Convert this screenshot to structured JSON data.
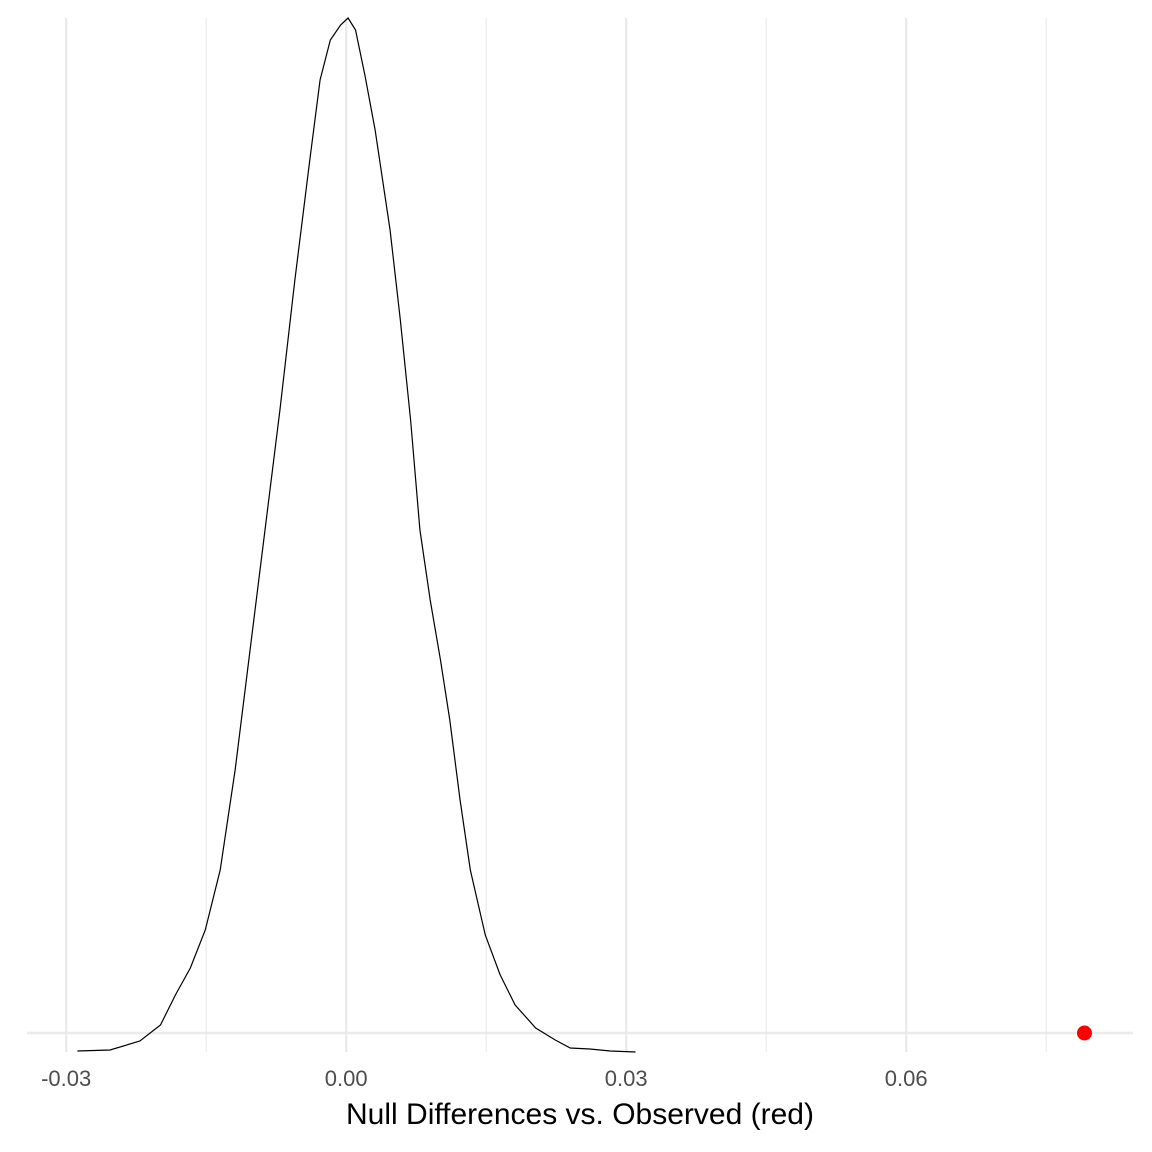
{
  "chart_data": {
    "type": "density",
    "x_label": "Null Differences vs. Observed (red)",
    "x": [
      -0.0288,
      -0.0253,
      -0.0221,
      -0.0199,
      -0.0183,
      -0.0167,
      -0.0151,
      -0.0135,
      -0.0119,
      -0.0103,
      -0.0087,
      -0.0071,
      -0.0055,
      -0.0039,
      -0.0028,
      -0.0017,
      -0.0006,
      0.0002,
      0.001,
      0.002,
      0.0031,
      0.0047,
      0.0058,
      0.0069,
      0.0079,
      0.009,
      0.0101,
      0.0111,
      0.0122,
      0.0133,
      0.0149,
      0.0165,
      0.0181,
      0.0203,
      0.0224,
      0.024,
      0.0261,
      0.0283,
      0.031
    ],
    "values": [
      -0.9,
      -0.85,
      -0.4,
      0.4,
      1.9,
      3.25,
      5.15,
      8.15,
      13.15,
      19.15,
      25.15,
      31.15,
      37.65,
      43.65,
      47.65,
      49.65,
      50.4,
      50.75,
      50.15,
      47.9,
      45.15,
      40.15,
      35.65,
      30.65,
      25.15,
      21.65,
      18.65,
      15.65,
      11.65,
      8.15,
      4.9,
      2.9,
      1.4,
      0.25,
      -0.35,
      -0.75,
      -0.8,
      -0.9,
      -0.95
    ],
    "color": "#000000",
    "observed": {
      "x": 0.0791,
      "y": 0,
      "color": "#ff0000"
    },
    "xlim": [
      -0.0342,
      0.0843
    ],
    "ylim": [
      -0.95,
      50.75
    ],
    "xticks": [
      -0.03,
      {
        "value": 0,
        "label": "0.00"
      },
      0.03,
      0.06
    ],
    "xminor": [
      -0.015,
      0.015,
      0.045,
      0.075
    ],
    "ygrid": [
      0
    ],
    "grid": true
  }
}
